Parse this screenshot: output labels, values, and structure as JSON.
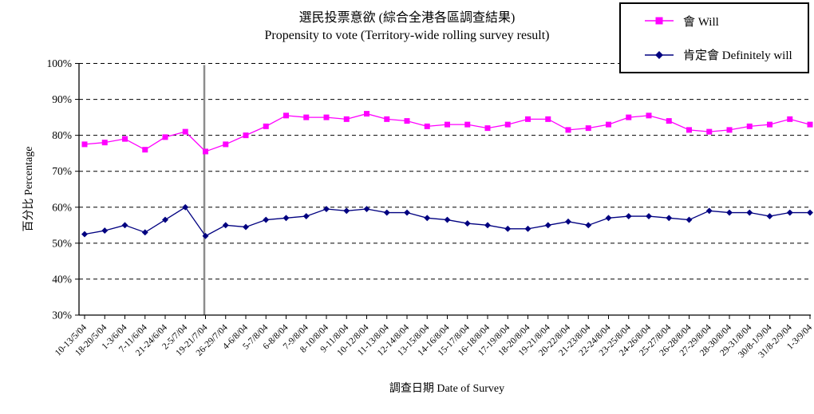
{
  "title": {
    "zh": "選民投票意欲 (綜合全港各區調查結果)",
    "en": "Propensity to vote (Territory-wide rolling survey result)"
  },
  "colors": {
    "will_series": "#FF00FF",
    "definitely_series": "#000080",
    "separator_line": "#8C8C8C",
    "axis": "#000000",
    "background": "#FFFFFF"
  },
  "chart_data": {
    "type": "line",
    "title": "選民投票意欲 (綜合全港各區調查結果)",
    "subtitle": "Propensity to vote (Territory-wide rolling survey result)",
    "xlabel": "調查日期 Date of Survey",
    "ylabel": "百分比 Percentage",
    "ylim": [
      30,
      100
    ],
    "ytick_step": 10,
    "ytick_format": "percent",
    "grid": "horizontal-dashed",
    "legend_position": "top-right-outside",
    "separator_line_at_category": "19-21/7/04",
    "categories": [
      "10-13/5/04",
      "18-20/5/04",
      "1-3/6/04",
      "7-11/6/04",
      "21-24/6/04",
      "2-5/7/04",
      "19-21/7/04",
      "26-29/7/04",
      "4-6/8/04",
      "5-7/8/04",
      "6-8/8/04",
      "7-9/8/04",
      "8-10/8/04",
      "9-11/8/04",
      "10-12/8/04",
      "11-13/8/04",
      "12-14/8/04",
      "13-15/8/04",
      "14-16/8/04",
      "15-17/8/04",
      "16-18/8/04",
      "17-19/8/04",
      "18-20/8/04",
      "19-21/8/04",
      "20-22/8/04",
      "21-23/8/04",
      "22-24/8/04",
      "23-25/8/04",
      "24-26/8/04",
      "25-27/8/04",
      "26-28/8/04",
      "27-29/8/04",
      "28-30/8/04",
      "29-31/8/04",
      "30/8-1/9/04",
      "31/8-2/9/04",
      "1-3/9/04"
    ],
    "series": [
      {
        "name": "會 Will",
        "color": "#FF00FF",
        "marker": "square",
        "values": [
          77.5,
          78,
          79,
          76,
          79.5,
          81,
          75.5,
          77.5,
          80,
          82.5,
          85.5,
          85,
          85,
          84.5,
          86,
          84.5,
          84,
          82.5,
          83,
          83,
          82,
          83,
          84.5,
          84.5,
          81.5,
          82,
          83,
          85,
          85.5,
          84,
          81.5,
          81,
          81.5,
          82.5,
          83,
          84.5,
          83
        ]
      },
      {
        "name": "肯定會 Definitely will",
        "color": "#000080",
        "marker": "diamond",
        "values": [
          52.5,
          53.5,
          55,
          53,
          56.5,
          60,
          52,
          55,
          54.5,
          56.5,
          57,
          57.5,
          59.5,
          59,
          59.5,
          58.5,
          58.5,
          57,
          56.5,
          55.5,
          55,
          54,
          54,
          55,
          56,
          55,
          57,
          57.5,
          57.5,
          57,
          56.5,
          59,
          58.5,
          58.5,
          57.5,
          58.5,
          58.5
        ]
      }
    ]
  }
}
